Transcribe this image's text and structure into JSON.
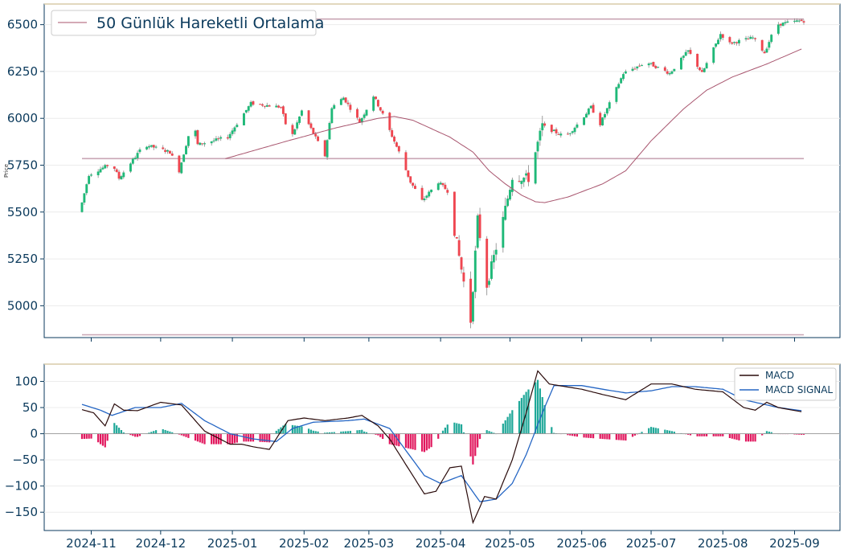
{
  "chart_data": [
    {
      "id": "price",
      "type": "candlestick",
      "ylabel": "Price",
      "ylim": [
        4830,
        6610
      ],
      "yticks": [
        5000,
        5250,
        5500,
        5750,
        6000,
        6250,
        6500
      ],
      "legend": {
        "label": "50 Günlük Hareketli Ortalama",
        "placement": "top-left"
      },
      "colors": {
        "up": "#1fb978",
        "down": "#ef4650",
        "sma": "#a8556e",
        "hline": "#c9a6b4",
        "axis": "#0b3a5c",
        "wick": "#888888",
        "grid": "#ececec",
        "top_border": "#d8cba8"
      },
      "horizontal_levels": [
        6530,
        5785,
        4845
      ],
      "anchors": [
        [
          "2024-10-28",
          5500
        ],
        [
          "2024-11-01",
          5700
        ],
        [
          "2024-11-11",
          5760
        ],
        [
          "2024-11-14",
          5680
        ],
        [
          "2024-11-25",
          5860
        ],
        [
          "2024-12-06",
          5820
        ],
        [
          "2024-12-10",
          5720
        ],
        [
          "2024-12-16",
          6000
        ],
        [
          "2024-12-18",
          5860
        ],
        [
          "2024-12-31",
          5900
        ],
        [
          "2025-01-10",
          6080
        ],
        [
          "2025-01-23",
          6060
        ],
        [
          "2025-01-27",
          5880
        ],
        [
          "2025-02-01",
          6040
        ],
        [
          "2025-02-11",
          5800
        ],
        [
          "2025-02-14",
          6060
        ],
        [
          "2025-02-19",
          6110
        ],
        [
          "2025-02-26",
          5980
        ],
        [
          "2025-03-04",
          6120
        ],
        [
          "2025-03-08",
          6020
        ],
        [
          "2025-03-15",
          5820
        ],
        [
          "2025-03-20",
          5660
        ],
        [
          "2025-03-25",
          5560
        ],
        [
          "2025-04-01",
          5660
        ],
        [
          "2025-04-06",
          5600
        ],
        [
          "2025-04-08",
          5400
        ],
        [
          "2025-04-15",
          4920
        ],
        [
          "2025-04-18",
          5460
        ],
        [
          "2025-04-22",
          5110
        ],
        [
          "2025-04-29",
          5460
        ],
        [
          "2025-05-03",
          5690
        ],
        [
          "2025-05-10",
          5680
        ],
        [
          "2025-05-16",
          5960
        ],
        [
          "2025-05-26",
          5900
        ],
        [
          "2025-06-01",
          5980
        ],
        [
          "2025-06-06",
          6060
        ],
        [
          "2025-06-10",
          5970
        ],
        [
          "2025-06-20",
          6240
        ],
        [
          "2025-06-30",
          6300
        ],
        [
          "2025-07-10",
          6240
        ],
        [
          "2025-07-18",
          6360
        ],
        [
          "2025-07-24",
          6240
        ],
        [
          "2025-08-01",
          6450
        ],
        [
          "2025-08-05",
          6400
        ],
        [
          "2025-08-15",
          6430
        ],
        [
          "2025-08-20",
          6350
        ],
        [
          "2025-08-25",
          6500
        ],
        [
          "2025-09-04",
          6520
        ]
      ],
      "sma_anchors": [
        [
          "2024-12-29",
          5785
        ],
        [
          "2025-01-25",
          5880
        ],
        [
          "2025-02-15",
          5950
        ],
        [
          "2025-03-05",
          6000
        ],
        [
          "2025-03-12",
          6010
        ],
        [
          "2025-03-20",
          5990
        ],
        [
          "2025-04-05",
          5900
        ],
        [
          "2025-04-15",
          5820
        ],
        [
          "2025-04-22",
          5720
        ],
        [
          "2025-04-29",
          5650
        ],
        [
          "2025-05-06",
          5590
        ],
        [
          "2025-05-12",
          5555
        ],
        [
          "2025-05-16",
          5550
        ],
        [
          "2025-05-26",
          5580
        ],
        [
          "2025-06-10",
          5650
        ],
        [
          "2025-06-20",
          5720
        ],
        [
          "2025-07-01",
          5880
        ],
        [
          "2025-07-15",
          6050
        ],
        [
          "2025-07-25",
          6150
        ],
        [
          "2025-08-05",
          6220
        ],
        [
          "2025-08-20",
          6290
        ],
        [
          "2025-09-04",
          6370
        ]
      ]
    },
    {
      "id": "macd",
      "type": "line+histogram",
      "ylim": [
        -185,
        133
      ],
      "yticks": [
        -150,
        -100,
        -50,
        0,
        50,
        100
      ],
      "legend": {
        "placement": "top-right"
      },
      "series": [
        {
          "name": "MACD",
          "color": "#2a0b0b",
          "points": [
            [
              "2024-10-28",
              46
            ],
            [
              "2024-11-02",
              40
            ],
            [
              "2024-11-07",
              15
            ],
            [
              "2024-11-11",
              57
            ],
            [
              "2024-11-15",
              45
            ],
            [
              "2024-11-21",
              44
            ],
            [
              "2024-12-01",
              60
            ],
            [
              "2024-12-10",
              55
            ],
            [
              "2024-12-15",
              30
            ],
            [
              "2024-12-20",
              5
            ],
            [
              "2024-12-31",
              -20
            ],
            [
              "2025-01-05",
              -20
            ],
            [
              "2025-01-10",
              -25
            ],
            [
              "2025-01-17",
              -30
            ],
            [
              "2025-01-25",
              25
            ],
            [
              "2025-02-01",
              30
            ],
            [
              "2025-02-10",
              25
            ],
            [
              "2025-02-20",
              30
            ],
            [
              "2025-02-26",
              35
            ],
            [
              "2025-03-05",
              15
            ],
            [
              "2025-03-10",
              -10
            ],
            [
              "2025-03-20",
              -80
            ],
            [
              "2025-03-25",
              -115
            ],
            [
              "2025-03-30",
              -110
            ],
            [
              "2025-04-05",
              -65
            ],
            [
              "2025-04-10",
              -62
            ],
            [
              "2025-04-15",
              -170
            ],
            [
              "2025-04-20",
              -120
            ],
            [
              "2025-04-25",
              -125
            ],
            [
              "2025-05-02",
              -50
            ],
            [
              "2025-05-08",
              40
            ],
            [
              "2025-05-13",
              120
            ],
            [
              "2025-05-18",
              95
            ],
            [
              "2025-06-01",
              85
            ],
            [
              "2025-06-10",
              75
            ],
            [
              "2025-06-20",
              65
            ],
            [
              "2025-07-01",
              95
            ],
            [
              "2025-07-10",
              95
            ],
            [
              "2025-07-20",
              85
            ],
            [
              "2025-08-01",
              80
            ],
            [
              "2025-08-10",
              50
            ],
            [
              "2025-08-15",
              45
            ],
            [
              "2025-08-20",
              60
            ],
            [
              "2025-08-25",
              50
            ],
            [
              "2025-09-04",
              42
            ]
          ]
        },
        {
          "name": "MACD SIGNAL",
          "color": "#2566c4",
          "points": [
            [
              "2024-10-28",
              56
            ],
            [
              "2024-11-05",
              45
            ],
            [
              "2024-11-10",
              35
            ],
            [
              "2024-11-20",
              50
            ],
            [
              "2024-12-01",
              50
            ],
            [
              "2024-12-10",
              58
            ],
            [
              "2024-12-20",
              25
            ],
            [
              "2024-12-31",
              0
            ],
            [
              "2025-01-10",
              -10
            ],
            [
              "2025-01-20",
              -15
            ],
            [
              "2025-01-27",
              10
            ],
            [
              "2025-02-05",
              22
            ],
            [
              "2025-02-20",
              25
            ],
            [
              "2025-02-27",
              28
            ],
            [
              "2025-03-10",
              10
            ],
            [
              "2025-03-15",
              -20
            ],
            [
              "2025-03-25",
              -80
            ],
            [
              "2025-04-01",
              -95
            ],
            [
              "2025-04-10",
              -80
            ],
            [
              "2025-04-18",
              -130
            ],
            [
              "2025-04-25",
              -125
            ],
            [
              "2025-05-02",
              -95
            ],
            [
              "2025-05-08",
              -40
            ],
            [
              "2025-05-15",
              40
            ],
            [
              "2025-05-20",
              92
            ],
            [
              "2025-06-01",
              92
            ],
            [
              "2025-06-10",
              85
            ],
            [
              "2025-06-20",
              78
            ],
            [
              "2025-07-01",
              82
            ],
            [
              "2025-07-10",
              90
            ],
            [
              "2025-07-20",
              90
            ],
            [
              "2025-08-01",
              85
            ],
            [
              "2025-08-10",
              65
            ],
            [
              "2025-08-20",
              55
            ],
            [
              "2025-08-25",
              50
            ],
            [
              "2025-09-04",
              44
            ]
          ]
        }
      ],
      "histogram_colors": {
        "positive": "#20a899",
        "negative": "#e1185e"
      }
    }
  ],
  "x_axis": {
    "start": "2024-10-28",
    "end": "2025-09-05",
    "ticks": [
      "2024-11",
      "2024-12",
      "2025-01",
      "2025-02",
      "2025-03",
      "2025-04",
      "2025-05",
      "2025-06",
      "2025-07",
      "2025-08",
      "2025-09"
    ]
  }
}
